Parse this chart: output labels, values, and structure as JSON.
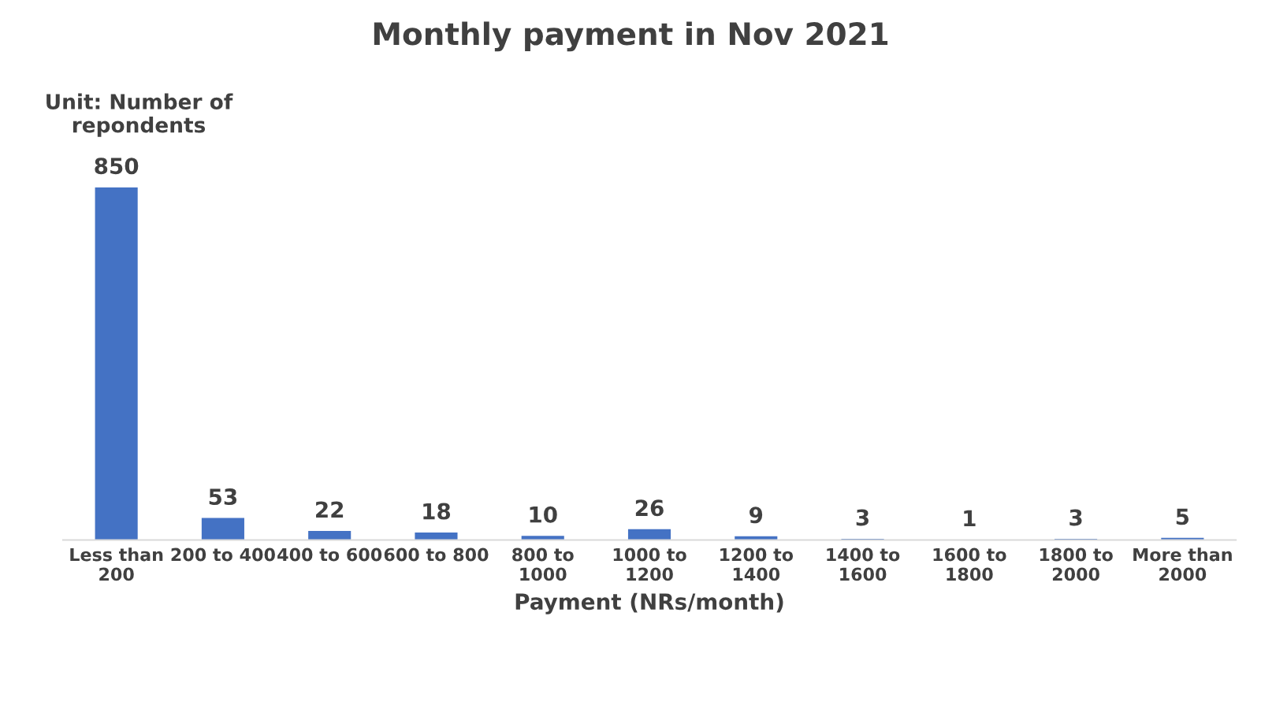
{
  "chart_data": {
    "type": "bar",
    "title": "Monthly payment in Nov 2021",
    "xlabel": "Payment (NRs/month)",
    "annotations": [
      "Unit: Number of\nrepondents"
    ],
    "categories": [
      "Less than\n200",
      "200 to 400",
      "400 to 600",
      "600 to 800",
      "800 to\n1000",
      "1000 to\n1200",
      "1200 to\n1400",
      "1400 to\n1600",
      "1600 to\n1800",
      "1800 to\n2000",
      "More than\n2000"
    ],
    "values": [
      850,
      53,
      22,
      18,
      10,
      26,
      9,
      3,
      1,
      3,
      5
    ],
    "color": "#4472c4",
    "data_labels": true
  }
}
